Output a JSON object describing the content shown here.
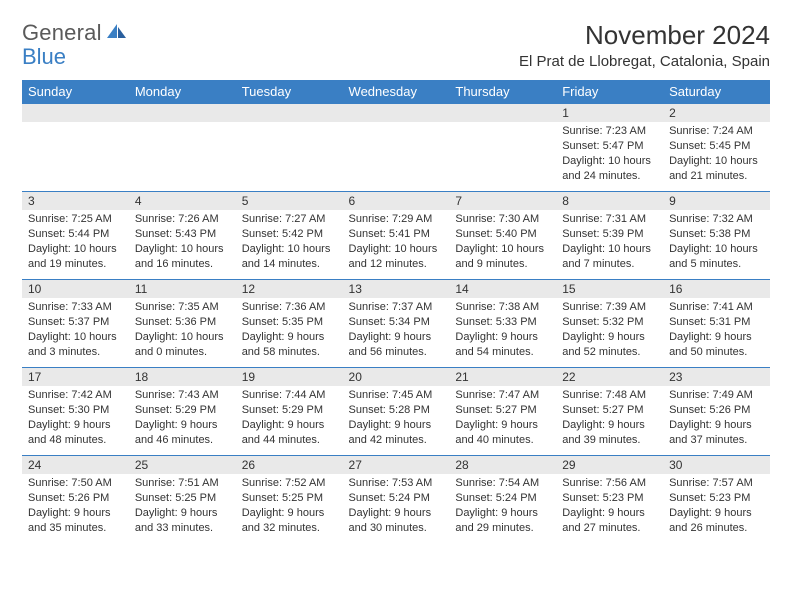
{
  "logo": {
    "text1": "General",
    "text2": "Blue"
  },
  "title": "November 2024",
  "location": "El Prat de Llobregat, Catalonia, Spain",
  "colors": {
    "header_bg": "#3a7fc4",
    "header_fg": "#ffffff",
    "daynum_bg": "#e9e9e9",
    "row_border": "#3a7fc4",
    "text": "#333333",
    "logo_gray": "#5a5a5a",
    "logo_blue": "#3a7fc4"
  },
  "fonts": {
    "title_size_pt": 20,
    "location_size_pt": 11,
    "header_size_pt": 10,
    "body_size_pt": 8
  },
  "weekdays": [
    "Sunday",
    "Monday",
    "Tuesday",
    "Wednesday",
    "Thursday",
    "Friday",
    "Saturday"
  ],
  "weeks": [
    [
      {
        "empty": true
      },
      {
        "empty": true
      },
      {
        "empty": true
      },
      {
        "empty": true
      },
      {
        "empty": true
      },
      {
        "num": "1",
        "sunrise": "Sunrise: 7:23 AM",
        "sunset": "Sunset: 5:47 PM",
        "daylight": "Daylight: 10 hours and 24 minutes."
      },
      {
        "num": "2",
        "sunrise": "Sunrise: 7:24 AM",
        "sunset": "Sunset: 5:45 PM",
        "daylight": "Daylight: 10 hours and 21 minutes."
      }
    ],
    [
      {
        "num": "3",
        "sunrise": "Sunrise: 7:25 AM",
        "sunset": "Sunset: 5:44 PM",
        "daylight": "Daylight: 10 hours and 19 minutes."
      },
      {
        "num": "4",
        "sunrise": "Sunrise: 7:26 AM",
        "sunset": "Sunset: 5:43 PM",
        "daylight": "Daylight: 10 hours and 16 minutes."
      },
      {
        "num": "5",
        "sunrise": "Sunrise: 7:27 AM",
        "sunset": "Sunset: 5:42 PM",
        "daylight": "Daylight: 10 hours and 14 minutes."
      },
      {
        "num": "6",
        "sunrise": "Sunrise: 7:29 AM",
        "sunset": "Sunset: 5:41 PM",
        "daylight": "Daylight: 10 hours and 12 minutes."
      },
      {
        "num": "7",
        "sunrise": "Sunrise: 7:30 AM",
        "sunset": "Sunset: 5:40 PM",
        "daylight": "Daylight: 10 hours and 9 minutes."
      },
      {
        "num": "8",
        "sunrise": "Sunrise: 7:31 AM",
        "sunset": "Sunset: 5:39 PM",
        "daylight": "Daylight: 10 hours and 7 minutes."
      },
      {
        "num": "9",
        "sunrise": "Sunrise: 7:32 AM",
        "sunset": "Sunset: 5:38 PM",
        "daylight": "Daylight: 10 hours and 5 minutes."
      }
    ],
    [
      {
        "num": "10",
        "sunrise": "Sunrise: 7:33 AM",
        "sunset": "Sunset: 5:37 PM",
        "daylight": "Daylight: 10 hours and 3 minutes."
      },
      {
        "num": "11",
        "sunrise": "Sunrise: 7:35 AM",
        "sunset": "Sunset: 5:36 PM",
        "daylight": "Daylight: 10 hours and 0 minutes."
      },
      {
        "num": "12",
        "sunrise": "Sunrise: 7:36 AM",
        "sunset": "Sunset: 5:35 PM",
        "daylight": "Daylight: 9 hours and 58 minutes."
      },
      {
        "num": "13",
        "sunrise": "Sunrise: 7:37 AM",
        "sunset": "Sunset: 5:34 PM",
        "daylight": "Daylight: 9 hours and 56 minutes."
      },
      {
        "num": "14",
        "sunrise": "Sunrise: 7:38 AM",
        "sunset": "Sunset: 5:33 PM",
        "daylight": "Daylight: 9 hours and 54 minutes."
      },
      {
        "num": "15",
        "sunrise": "Sunrise: 7:39 AM",
        "sunset": "Sunset: 5:32 PM",
        "daylight": "Daylight: 9 hours and 52 minutes."
      },
      {
        "num": "16",
        "sunrise": "Sunrise: 7:41 AM",
        "sunset": "Sunset: 5:31 PM",
        "daylight": "Daylight: 9 hours and 50 minutes."
      }
    ],
    [
      {
        "num": "17",
        "sunrise": "Sunrise: 7:42 AM",
        "sunset": "Sunset: 5:30 PM",
        "daylight": "Daylight: 9 hours and 48 minutes."
      },
      {
        "num": "18",
        "sunrise": "Sunrise: 7:43 AM",
        "sunset": "Sunset: 5:29 PM",
        "daylight": "Daylight: 9 hours and 46 minutes."
      },
      {
        "num": "19",
        "sunrise": "Sunrise: 7:44 AM",
        "sunset": "Sunset: 5:29 PM",
        "daylight": "Daylight: 9 hours and 44 minutes."
      },
      {
        "num": "20",
        "sunrise": "Sunrise: 7:45 AM",
        "sunset": "Sunset: 5:28 PM",
        "daylight": "Daylight: 9 hours and 42 minutes."
      },
      {
        "num": "21",
        "sunrise": "Sunrise: 7:47 AM",
        "sunset": "Sunset: 5:27 PM",
        "daylight": "Daylight: 9 hours and 40 minutes."
      },
      {
        "num": "22",
        "sunrise": "Sunrise: 7:48 AM",
        "sunset": "Sunset: 5:27 PM",
        "daylight": "Daylight: 9 hours and 39 minutes."
      },
      {
        "num": "23",
        "sunrise": "Sunrise: 7:49 AM",
        "sunset": "Sunset: 5:26 PM",
        "daylight": "Daylight: 9 hours and 37 minutes."
      }
    ],
    [
      {
        "num": "24",
        "sunrise": "Sunrise: 7:50 AM",
        "sunset": "Sunset: 5:26 PM",
        "daylight": "Daylight: 9 hours and 35 minutes."
      },
      {
        "num": "25",
        "sunrise": "Sunrise: 7:51 AM",
        "sunset": "Sunset: 5:25 PM",
        "daylight": "Daylight: 9 hours and 33 minutes."
      },
      {
        "num": "26",
        "sunrise": "Sunrise: 7:52 AM",
        "sunset": "Sunset: 5:25 PM",
        "daylight": "Daylight: 9 hours and 32 minutes."
      },
      {
        "num": "27",
        "sunrise": "Sunrise: 7:53 AM",
        "sunset": "Sunset: 5:24 PM",
        "daylight": "Daylight: 9 hours and 30 minutes."
      },
      {
        "num": "28",
        "sunrise": "Sunrise: 7:54 AM",
        "sunset": "Sunset: 5:24 PM",
        "daylight": "Daylight: 9 hours and 29 minutes."
      },
      {
        "num": "29",
        "sunrise": "Sunrise: 7:56 AM",
        "sunset": "Sunset: 5:23 PM",
        "daylight": "Daylight: 9 hours and 27 minutes."
      },
      {
        "num": "30",
        "sunrise": "Sunrise: 7:57 AM",
        "sunset": "Sunset: 5:23 PM",
        "daylight": "Daylight: 9 hours and 26 minutes."
      }
    ]
  ]
}
